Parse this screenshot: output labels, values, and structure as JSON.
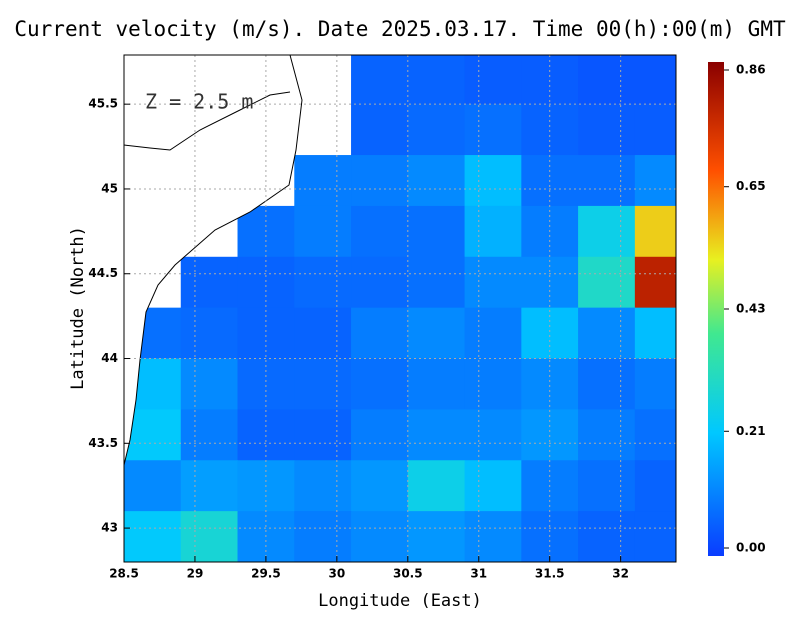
{
  "chart_data": {
    "type": "heatmap",
    "title": "Current velocity (m/s). Date 2025.03.17. Time 00(h):00(m) GMT",
    "xlabel": "Longitude (East)",
    "ylabel": "Latitude (North)",
    "annotation": "Z = 2.5 m",
    "xlim": [
      28.5,
      32.39
    ],
    "ylim": [
      42.8,
      45.79
    ],
    "xticks": [
      28.5,
      29,
      29.5,
      30,
      30.5,
      31,
      31.5,
      32
    ],
    "yticks": [
      43,
      43.5,
      44,
      44.5,
      45,
      45.5
    ],
    "grid": true,
    "lon_edges": [
      28.5,
      28.9,
      29.3,
      29.7,
      30.1,
      30.5,
      30.9,
      31.3,
      31.7,
      32.1,
      32.39
    ],
    "lat_edges": [
      45.79,
      45.5,
      45.2,
      44.9,
      44.6,
      44.3,
      44.0,
      43.7,
      43.4,
      43.1,
      42.8
    ],
    "values": [
      [
        null,
        null,
        null,
        null,
        0.06,
        0.06,
        0.05,
        0.05,
        0.04,
        0.04
      ],
      [
        null,
        null,
        null,
        null,
        0.06,
        0.07,
        0.08,
        0.06,
        0.05,
        0.05
      ],
      [
        null,
        null,
        null,
        0.1,
        0.1,
        0.12,
        0.2,
        0.08,
        0.08,
        0.12
      ],
      [
        null,
        null,
        0.08,
        0.1,
        0.08,
        0.08,
        0.18,
        0.1,
        0.25,
        0.55
      ],
      [
        null,
        0.06,
        0.06,
        0.07,
        0.07,
        0.08,
        0.12,
        0.12,
        0.3,
        0.78
      ],
      [
        0.08,
        0.07,
        0.06,
        0.06,
        0.1,
        0.12,
        0.1,
        0.2,
        0.12,
        0.2
      ],
      [
        0.2,
        0.12,
        0.07,
        0.07,
        0.08,
        0.1,
        0.1,
        0.12,
        0.08,
        0.1
      ],
      [
        0.22,
        0.1,
        0.06,
        0.06,
        0.1,
        0.12,
        0.12,
        0.14,
        0.1,
        0.08
      ],
      [
        0.12,
        0.15,
        0.14,
        0.12,
        0.14,
        0.25,
        0.2,
        0.1,
        0.08,
        0.06
      ],
      [
        0.22,
        0.28,
        0.12,
        0.1,
        0.12,
        0.14,
        0.12,
        0.08,
        0.06,
        0.06
      ]
    ],
    "colorbar_lim": [
      0,
      0.86
    ],
    "colorbar_ticks": [
      {
        "value": 0,
        "label": "0.00"
      },
      0.21,
      0.43,
      0.65,
      0.86
    ]
  }
}
